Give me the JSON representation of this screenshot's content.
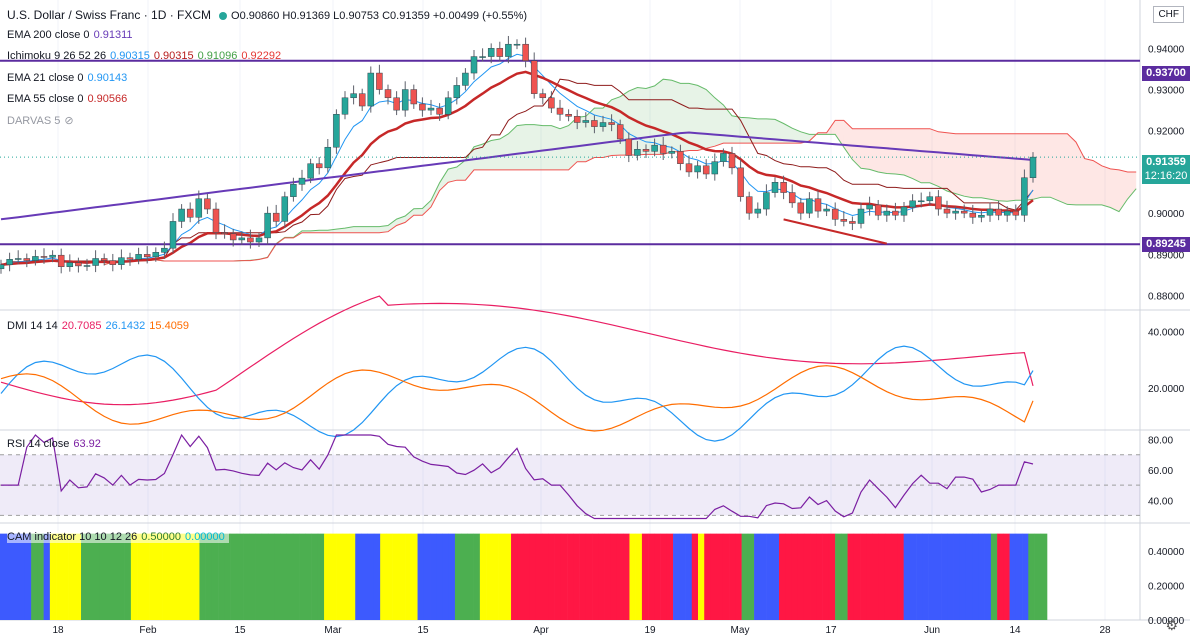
{
  "header": {
    "symbol": "U.S. Dollar / Swiss Franc · 1D · FXCM",
    "ohlc": "O0.90860  H0.91369  L0.90753  C0.91359  +0.00499 (+0.55%)"
  },
  "currency_button": "CHF",
  "legends": {
    "ema200": {
      "label": "EMA 200 close 0",
      "v1": "0.91311"
    },
    "ichimoku": {
      "label": "Ichimoku 9 26 52 26",
      "v1": "0.90315",
      "v2": "0.90315",
      "v3": "0.91096",
      "v4": "0.92292"
    },
    "ema21": {
      "label": "EMA 21 close 0",
      "v1": "0.90143"
    },
    "ema55": {
      "label": "EMA 55 close 0",
      "v1": "0.90566"
    },
    "darvas": {
      "label": "DARVAS 5"
    },
    "dmi": {
      "label": "DMI 14 14",
      "v1": "20.7085",
      "v2": "26.1432",
      "v3": "15.4059"
    },
    "rsi": {
      "label": "RSI 14 close",
      "v1": "63.92"
    },
    "cam": {
      "label": "CAM indicator 10 10 12 26",
      "v1": "0.50000",
      "v2": "0.00000"
    }
  },
  "price_tags": {
    "upper_line": "0.93700",
    "current": "0.91359",
    "countdown": "12:16:20",
    "lower_line": "0.89245"
  },
  "colors": {
    "up": "#26a69a",
    "down": "#ef5350",
    "ema200": "#673ab7",
    "ema21": "#2196f3",
    "ema55": "#c62828",
    "hline": "#5b2c9f",
    "dmi_adx": "#e91e63",
    "dmi_plus": "#2196f3",
    "dmi_minus": "#ff6d00",
    "rsi": "#7b1fa2",
    "cam_green": "#4caf50",
    "cam_blue": "#3d5afe",
    "cam_yellow": "#ffff00",
    "cam_red": "#ff1744"
  },
  "chart_data": [
    {
      "type": "candlestick",
      "title": "U.S. Dollar / Swiss Franc · 1D · FXCM",
      "x_tick_labels": [
        "18",
        "Feb",
        "15",
        "Mar",
        "15",
        "Apr",
        "19",
        "May",
        "17",
        "Jun",
        "14",
        "28"
      ],
      "y_tick_labels": [
        "0.94000",
        "0.93000",
        "0.92000",
        "0.91000",
        "0.90000",
        "0.89000",
        "0.88000"
      ],
      "ylim": [
        0.8765,
        0.951
      ],
      "horizontal_lines": [
        0.937,
        0.89245
      ],
      "closes": [
        0.8875,
        0.8888,
        0.889,
        0.8885,
        0.8895,
        0.8893,
        0.8898,
        0.887,
        0.888,
        0.8872,
        0.8873,
        0.889,
        0.8885,
        0.8875,
        0.8892,
        0.8888,
        0.89,
        0.8894,
        0.8905,
        0.8915,
        0.898,
        0.901,
        0.899,
        0.9035,
        0.901,
        0.8953,
        0.895,
        0.8935,
        0.894,
        0.893,
        0.894,
        0.9,
        0.898,
        0.904,
        0.907,
        0.9085,
        0.912,
        0.911,
        0.916,
        0.924,
        0.928,
        0.929,
        0.926,
        0.934,
        0.93,
        0.928,
        0.925,
        0.93,
        0.9265,
        0.925,
        0.9255,
        0.924,
        0.928,
        0.931,
        0.934,
        0.938,
        0.938,
        0.94,
        0.938,
        0.941,
        0.941,
        0.937,
        0.929,
        0.928,
        0.9255,
        0.924,
        0.9235,
        0.922,
        0.9225,
        0.921,
        0.922,
        0.9215,
        0.918,
        0.914,
        0.9155,
        0.915,
        0.9165,
        0.9145,
        0.915,
        0.912,
        0.91,
        0.9115,
        0.9095,
        0.9125,
        0.9145,
        0.911,
        0.904,
        0.9,
        0.901,
        0.905,
        0.9075,
        0.905,
        0.9025,
        0.9,
        0.9035,
        0.9005,
        0.901,
        0.8985,
        0.898,
        0.8975,
        0.901,
        0.902,
        0.8995,
        0.9005,
        0.8995,
        0.9015,
        0.903,
        0.903,
        0.904,
        0.901,
        0.9,
        0.9005,
        0.9,
        0.899,
        0.8995,
        0.901,
        0.8995,
        0.9005,
        0.8995,
        0.9086,
        0.9136
      ],
      "series": [
        {
          "name": "EMA 200 close 0",
          "values_at_start_end": [
            0.8985,
            0.91311
          ]
        },
        {
          "name": "EMA 21 close 0",
          "last": 0.90143
        },
        {
          "name": "EMA 55 close 0",
          "last": 0.90566
        }
      ]
    },
    {
      "type": "line",
      "title": "DMI 14 14",
      "y_tick_labels": [
        "40.0000",
        "20.0000"
      ],
      "ylim": [
        5,
        47
      ],
      "series": [
        {
          "name": "ADX",
          "last": 20.7085
        },
        {
          "name": "+DI",
          "last": 26.1432
        },
        {
          "name": "-DI",
          "last": 15.4059
        }
      ]
    },
    {
      "type": "line",
      "title": "RSI 14 close",
      "y_tick_labels": [
        "80.00",
        "60.00",
        "40.00"
      ],
      "ylim": [
        25,
        85
      ],
      "bands": [
        30,
        70
      ],
      "series": [
        {
          "name": "RSI 14 close",
          "last": 63.92
        }
      ]
    },
    {
      "type": "bar",
      "title": "CAM indicator 10 10 12 26",
      "y_tick_labels": [
        "0.40000",
        "0.20000",
        "0.00000"
      ],
      "ylim": [
        0,
        0.55
      ],
      "colors_sequence": "BBBBBGGBYYYYYGGGGGGGGYYYYYYYYYYYGGGGGGGGGGGGGGGGGGGGYYYYYBBBBYYYYYYBBBBBBGGGGYYYYYRRRRRRRRRRRRRRRRRRRYYRRRRRBBBRYRRRRRRGGBBBBRRRRRRRRRGGRRRRRRRRRBBBBBBBBBBBBBBGRRBBBGGG"
    }
  ]
}
